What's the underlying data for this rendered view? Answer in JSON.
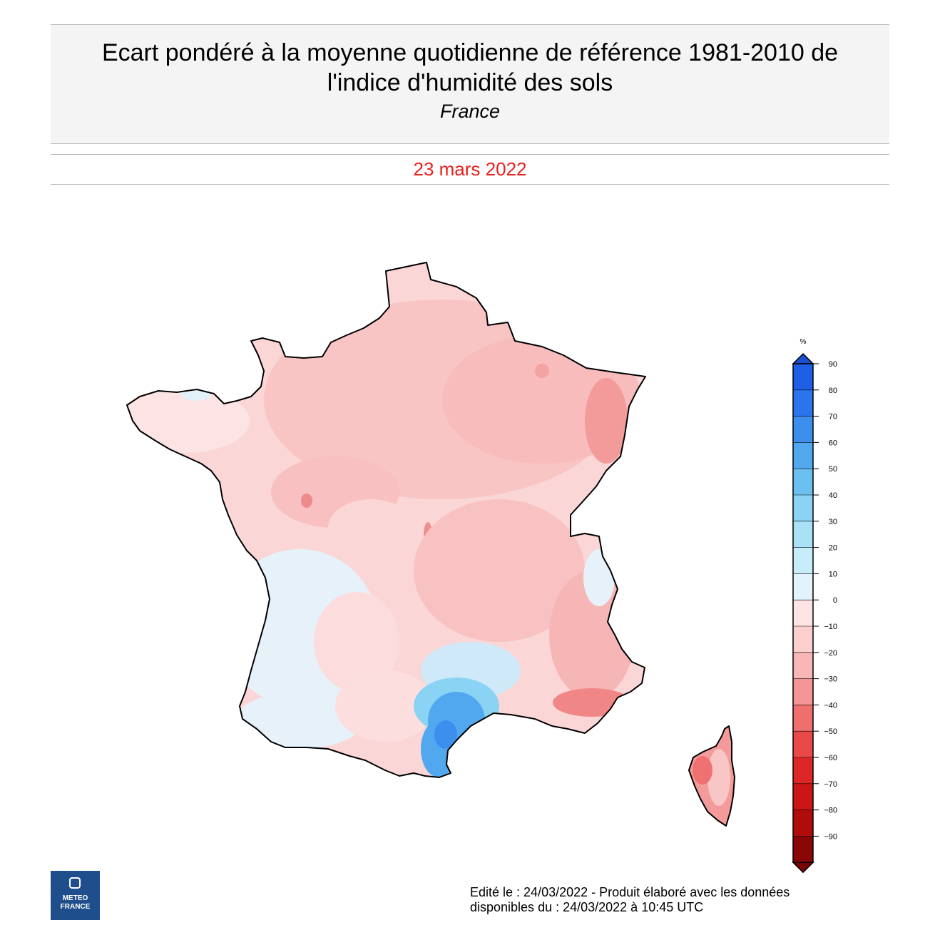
{
  "header": {
    "title_line1": "Ecart pondéré à la moyenne quotidienne de référence 1981-2010 de",
    "title_line2": "l'indice d'humidité des sols",
    "region": "France"
  },
  "date": "23 mars 2022",
  "legend": {
    "unit": "%",
    "ticks": [
      "90",
      "80",
      "70",
      "60",
      "50",
      "40",
      "30",
      "20",
      "10",
      "0",
      "−10",
      "−20",
      "−30",
      "−40",
      "−50",
      "−60",
      "−70",
      "−80",
      "−90"
    ],
    "colors_top_to_bottom": [
      "#1f5fe8",
      "#2a75ee",
      "#3d8fee",
      "#52a8ee",
      "#6cc0f0",
      "#8ad3f4",
      "#a9e1f7",
      "#c7ecfa",
      "#e3f3fc",
      "#fde3e3",
      "#fccfcf",
      "#f9b6b6",
      "#f59595",
      "#ef6f6f",
      "#e84848",
      "#de2626",
      "#cc1616",
      "#b00c0c",
      "#8a0606"
    ],
    "top_arrow_color": "#1a4fcf",
    "bottom_arrow_color": "#7a0404"
  },
  "logo": {
    "line1": "METEO",
    "line2": "FRANCE"
  },
  "footer": {
    "line1": "Edité le : 24/03/2022 - Produit élaboré avec les données",
    "line2": "disponibles du : 24/03/2022 à 10:45 UTC"
  }
}
